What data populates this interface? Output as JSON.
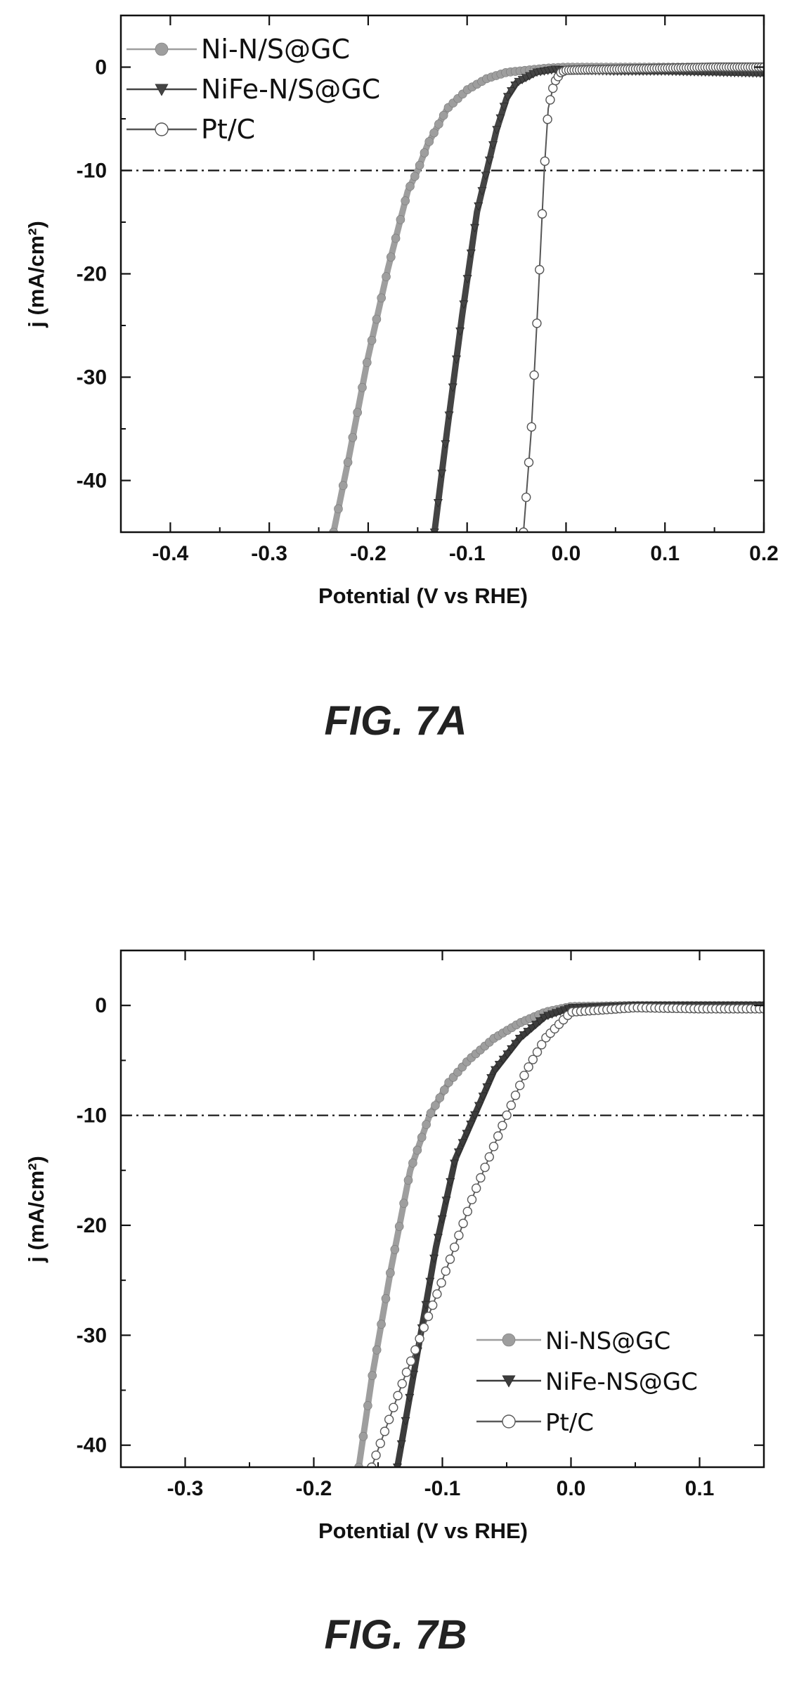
{
  "chart_data": [
    {
      "type": "line",
      "caption": "FIG. 7A",
      "xlabel": "Potential (V vs RHE)",
      "ylabel": "j (mA/cm²)",
      "xlim": [
        -0.45,
        0.2
      ],
      "ylim": [
        -45,
        5
      ],
      "xticks": [
        -0.4,
        -0.3,
        -0.2,
        -0.1,
        0.0,
        0.1,
        0.2
      ],
      "xtick_labels": [
        "-0.4",
        "-0.3",
        "-0.2",
        "-0.1",
        "0.0",
        "0.1",
        "0.2"
      ],
      "yticks": [
        0,
        -10,
        -20,
        -30,
        -40
      ],
      "ytick_labels": [
        "0",
        "-10",
        "-20",
        "-30",
        "-40"
      ],
      "reference_line": -10,
      "legend_position": "top-left",
      "series": [
        {
          "name": "Ni-N/S@GC",
          "marker": "circle-filled",
          "color": "#9e9e9e",
          "x": [
            -0.235,
            -0.22,
            -0.2,
            -0.18,
            -0.16,
            -0.15,
            -0.14,
            -0.12,
            -0.1,
            -0.08,
            -0.06,
            -0.04,
            -0.02,
            0.0,
            0.05,
            0.1,
            0.15,
            0.2
          ],
          "y": [
            -45,
            -38,
            -28,
            -19.5,
            -12,
            -10,
            -7.5,
            -4,
            -2.2,
            -1.1,
            -0.5,
            -0.3,
            -0.1,
            0,
            0,
            0,
            0,
            0
          ]
        },
        {
          "name": "NiFe-N/S@GC",
          "marker": "triangle-down",
          "color": "#444444",
          "x": [
            -0.133,
            -0.12,
            -0.105,
            -0.09,
            -0.08,
            -0.07,
            -0.06,
            -0.05,
            -0.03,
            -0.01,
            0.0,
            0.05,
            0.1,
            0.15,
            0.2
          ],
          "y": [
            -45,
            -35,
            -24,
            -14,
            -10,
            -6,
            -3,
            -1.5,
            -0.5,
            -0.2,
            -0.3,
            -0.4,
            -0.4,
            -0.5,
            -0.6
          ]
        },
        {
          "name": "Pt/C",
          "marker": "circle-open",
          "color": "#555555",
          "x": [
            -0.043,
            -0.035,
            -0.028,
            -0.022,
            -0.018,
            -0.012,
            -0.005,
            0.0,
            0.05,
            0.1,
            0.15,
            0.2
          ],
          "y": [
            -45,
            -35,
            -22,
            -10,
            -4,
            -1.5,
            -0.5,
            -0.3,
            -0.2,
            -0.1,
            0,
            0
          ]
        }
      ]
    },
    {
      "type": "line",
      "caption": "FIG. 7B",
      "xlabel": "Potential (V vs RHE)",
      "ylabel": "j (mA/cm²)",
      "xlim": [
        -0.35,
        0.15
      ],
      "ylim": [
        -42,
        5
      ],
      "xticks": [
        -0.3,
        -0.2,
        -0.1,
        0.0,
        0.1
      ],
      "xtick_labels": [
        "-0.3",
        "-0.2",
        "-0.1",
        "0.0",
        "0.1"
      ],
      "yticks": [
        0,
        -10,
        -20,
        -30,
        -40
      ],
      "ytick_labels": [
        "0",
        "-10",
        "-20",
        "-30",
        "-40"
      ],
      "reference_line": -10,
      "legend_position": "bottom-right",
      "series": [
        {
          "name": "Ni-NS@GC",
          "marker": "circle-filled",
          "color": "#9e9e9e",
          "x": [
            -0.165,
            -0.155,
            -0.14,
            -0.125,
            -0.11,
            -0.095,
            -0.08,
            -0.06,
            -0.04,
            -0.02,
            0.0,
            0.05,
            0.1,
            0.15
          ],
          "y": [
            -42,
            -34,
            -24,
            -15,
            -10,
            -7,
            -5,
            -3,
            -1.6,
            -0.6,
            -0.1,
            0,
            0,
            0
          ]
        },
        {
          "name": "NiFe-NS@GC",
          "marker": "triangle-down",
          "color": "#3c3c3c",
          "x": [
            -0.135,
            -0.12,
            -0.105,
            -0.09,
            -0.075,
            -0.06,
            -0.04,
            -0.02,
            0.0,
            0.05,
            0.1,
            0.15
          ],
          "y": [
            -42,
            -32,
            -22,
            -14,
            -10,
            -6,
            -3,
            -1,
            -0.2,
            0,
            0,
            0
          ]
        },
        {
          "name": "Pt/C",
          "marker": "circle-open",
          "color": "#5a5a5a",
          "x": [
            -0.155,
            -0.13,
            -0.1,
            -0.075,
            -0.05,
            -0.035,
            -0.02,
            0.0,
            0.05,
            0.1,
            0.15
          ],
          "y": [
            -42,
            -34,
            -25,
            -17,
            -10,
            -6,
            -3,
            -0.6,
            -0.2,
            -0.3,
            -0.3
          ]
        }
      ]
    }
  ]
}
